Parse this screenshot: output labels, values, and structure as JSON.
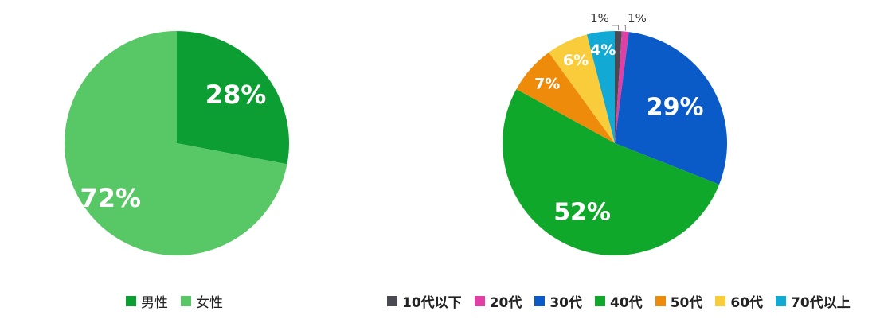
{
  "chart_data": [
    {
      "type": "pie",
      "categories": [
        "男性",
        "女性"
      ],
      "values": [
        28,
        72
      ],
      "labels": [
        "28%",
        "72%"
      ],
      "colors": [
        "#0d9e33",
        "#58c765"
      ],
      "legend_position": "bottom"
    },
    {
      "type": "pie",
      "categories": [
        "10代以下",
        "20代",
        "30代",
        "40代",
        "50代",
        "60代",
        "70代以上"
      ],
      "values": [
        1,
        1,
        29,
        52,
        7,
        6,
        4
      ],
      "labels": [
        "1%",
        "1%",
        "29%",
        "52%",
        "7%",
        "6%",
        "4%"
      ],
      "colors": [
        "#4a4a52",
        "#e040a6",
        "#0a5bc8",
        "#10a82a",
        "#ef8b0b",
        "#f8cc3a",
        "#12a9d5"
      ],
      "legend_position": "bottom"
    }
  ]
}
